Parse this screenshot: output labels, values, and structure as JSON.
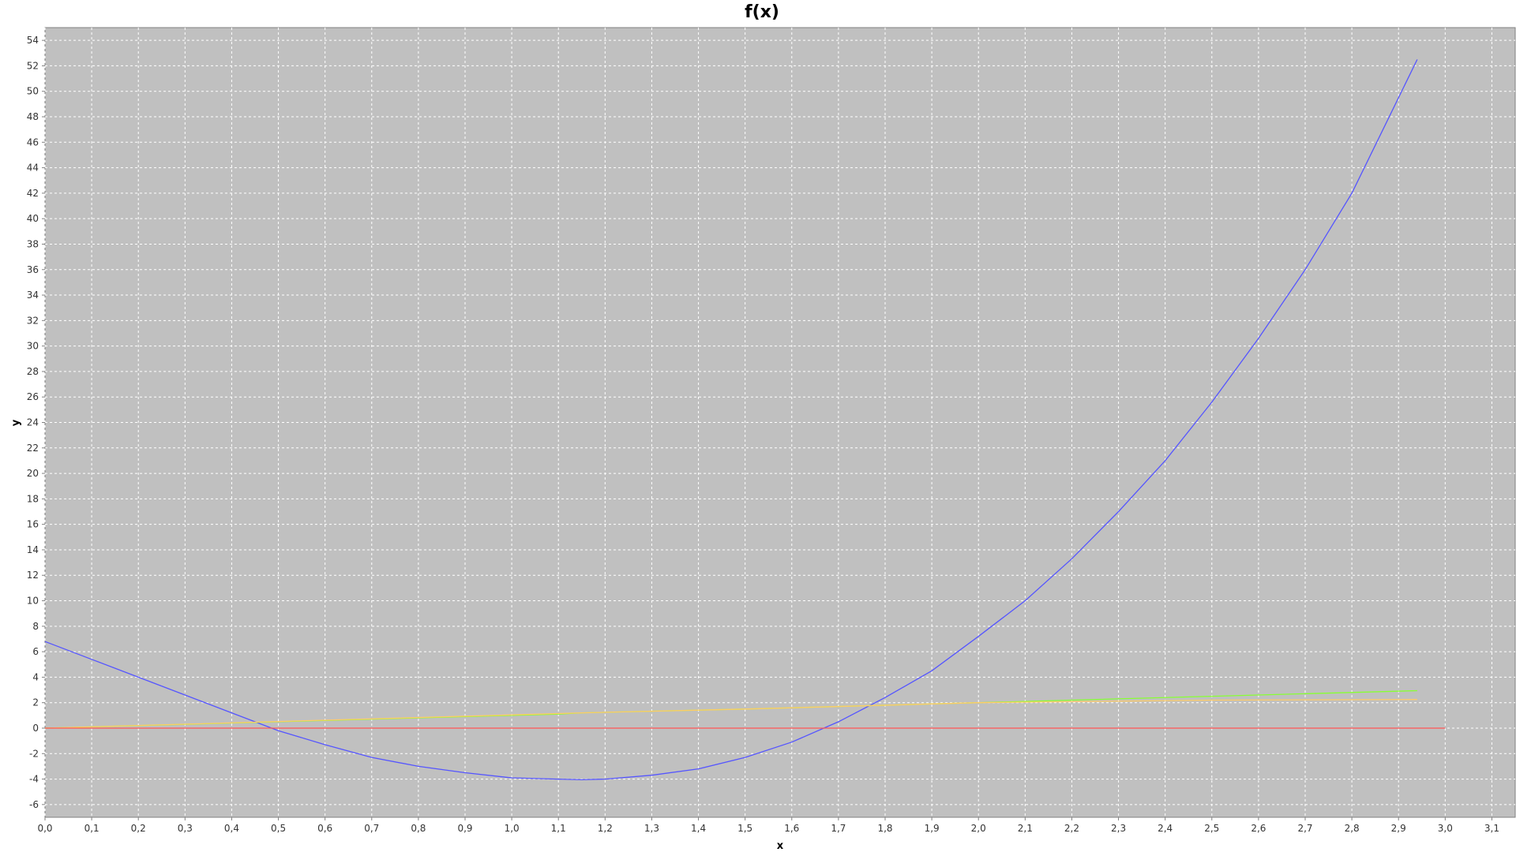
{
  "chart_data": {
    "type": "line",
    "title": "f(x)",
    "xlabel": "x",
    "ylabel": "y",
    "xlim": [
      0.0,
      3.15
    ],
    "ylim": [
      -7,
      55
    ],
    "x_ticks": [
      "0,0",
      "0,1",
      "0,2",
      "0,3",
      "0,4",
      "0,5",
      "0,6",
      "0,7",
      "0,8",
      "0,9",
      "1,0",
      "1,1",
      "1,2",
      "1,3",
      "1,4",
      "1,5",
      "1,6",
      "1,7",
      "1,8",
      "1,9",
      "2,0",
      "2,1",
      "2,2",
      "2,3",
      "2,4",
      "2,5",
      "2,6",
      "2,7",
      "2,8",
      "2,9",
      "3,0",
      "3,1"
    ],
    "y_ticks": [
      "-6",
      "-4",
      "-2",
      "0",
      "2",
      "4",
      "6",
      "8",
      "10",
      "12",
      "14",
      "16",
      "18",
      "20",
      "22",
      "24",
      "26",
      "28",
      "30",
      "32",
      "34",
      "36",
      "38",
      "40",
      "42",
      "44",
      "46",
      "48",
      "50",
      "52",
      "54"
    ],
    "grid": true,
    "plot_background": "#c0c0c0",
    "series": [
      {
        "color": "#5555ff",
        "x": [
          0.0,
          0.1,
          0.2,
          0.3,
          0.4,
          0.5,
          0.6,
          0.7,
          0.8,
          0.9,
          1.0,
          1.1,
          1.15,
          1.2,
          1.3,
          1.4,
          1.5,
          1.6,
          1.7,
          1.8,
          1.9,
          2.0,
          2.1,
          2.2,
          2.3,
          2.4,
          2.5,
          2.6,
          2.7,
          2.8,
          2.94
        ],
        "y": [
          6.8,
          5.4,
          4.0,
          2.6,
          1.2,
          -0.2,
          -1.3,
          -2.3,
          -3.0,
          -3.5,
          -3.9,
          -4.0,
          -4.05,
          -4.0,
          -3.7,
          -3.2,
          -2.3,
          -1.1,
          0.5,
          2.4,
          4.5,
          7.2,
          10.0,
          13.3,
          17.0,
          21.0,
          25.6,
          30.6,
          36.0,
          42.0,
          52.5
        ]
      },
      {
        "color": "#88ff33",
        "x": [
          0.0,
          0.5,
          1.0,
          1.1,
          1.15,
          1.5,
          2.0,
          2.5,
          2.94
        ],
        "y": [
          0.0,
          0.5,
          1.0,
          1.1,
          1.2,
          1.5,
          2.0,
          2.5,
          2.94
        ]
      },
      {
        "color": "#ffcc66",
        "x": [
          0.0,
          1.15,
          1.5,
          2.0,
          2.5,
          2.94
        ],
        "y": [
          0.0,
          1.2,
          1.5,
          2.0,
          2.2,
          2.25
        ]
      },
      {
        "color": "#ff5555",
        "x": [
          0.0,
          3.0
        ],
        "y": [
          0.0,
          0.0
        ]
      }
    ]
  }
}
